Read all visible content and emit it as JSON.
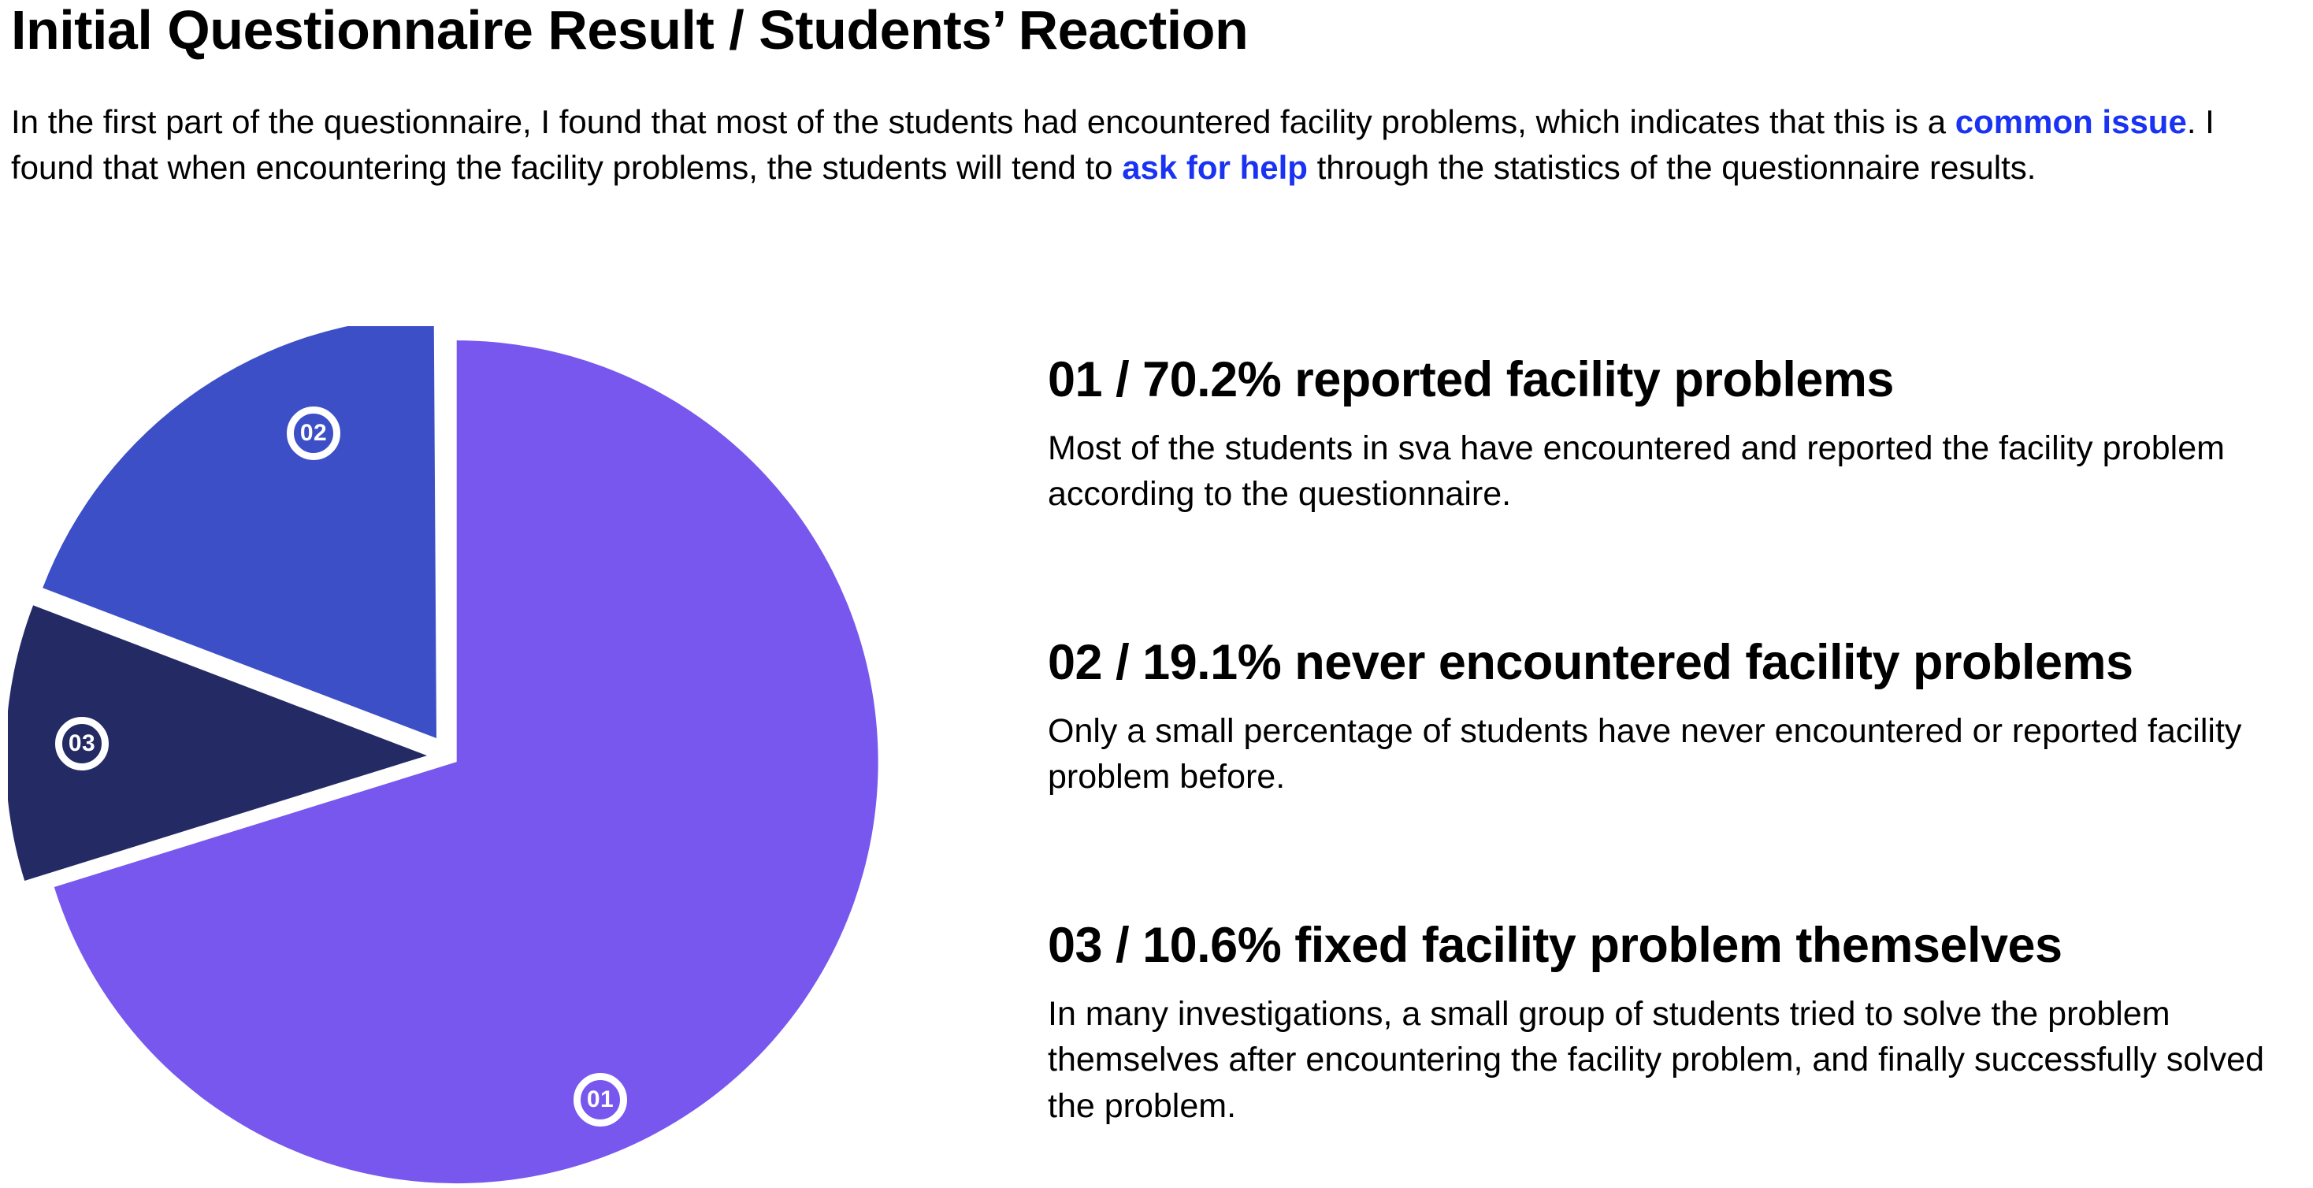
{
  "page": {
    "title": "Initial Questionnaire Result / Students’ Reaction"
  },
  "intro": {
    "emphasis_color": "#1a33f2",
    "segments": [
      {
        "style": "normal",
        "text": "In the first part of the questionnaire, I found that most of the students had encountered facility problems, which indicates that this is a "
      },
      {
        "style": "emphasis",
        "text": "common issue"
      },
      {
        "style": "normal",
        "text": ". I found that when encountering the facility problems, the students will tend to "
      },
      {
        "style": "emphasis",
        "text": "ask for help"
      },
      {
        "style": "normal",
        "text": " through the statistics of the questionnaire results."
      }
    ]
  },
  "chart_data": {
    "type": "pie",
    "labels": [
      "01",
      "02",
      "03"
    ],
    "values": [
      70.2,
      19.1,
      10.6
    ],
    "colors": [
      "#7857ee",
      "#3c4fc6",
      "#232a64"
    ],
    "start_angle_deg": 0,
    "direction": "clockwise",
    "clockwise_order_indices": [
      0,
      2,
      1
    ],
    "exploded": [
      false,
      true,
      true
    ],
    "legend_position": "none",
    "title": ""
  },
  "sections": [
    {
      "heading": "01 / 70.2% reported facility problems",
      "body": "Most of the students in sva have encountered and reported the facility problem according to the questionnaire."
    },
    {
      "heading": "02 / 19.1% never encountered facility problems",
      "body": "Only a small percentage of students have never encountered or reported facility problem before."
    },
    {
      "heading": "03 / 10.6% fixed facility problem themselves",
      "body": "In many investigations, a small group of students tried to solve the problem themselves after encountering the facility problem, and finally successfully solved the problem."
    }
  ]
}
